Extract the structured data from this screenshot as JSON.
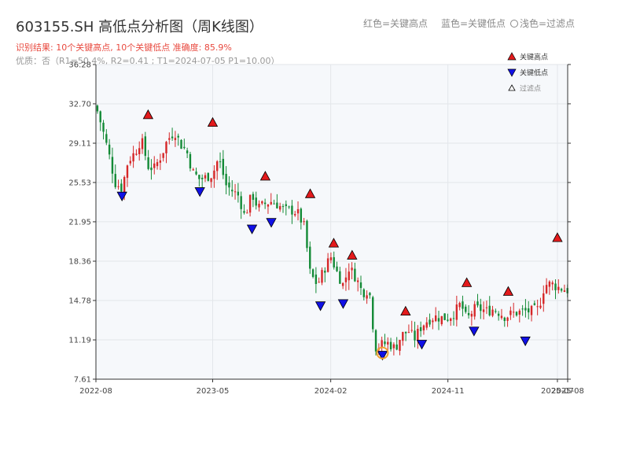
{
  "header": {
    "title": "603155.SH 高低点分析图（周K线图）",
    "legend_red": "红色=关键高点",
    "legend_blue": "蓝色=关键低点",
    "legend_light": "浅色=过滤点",
    "result_text": "识别结果: 10个关键高点, 10个关键低点  准确度: 85.9%",
    "quality_text": "优质：否（R1=50.4%, R2=0.41 ; T1=2024-07-05 P1=10.00）"
  },
  "colors": {
    "up": "#d62728",
    "down": "#138a36",
    "high_marker": "#e31a1c",
    "low_marker": "#1010e6",
    "plot_bg": "#f6f8fb",
    "grid": "#e3e6ea",
    "highlight_ring": "#f0a030"
  },
  "chart_data": {
    "type": "candlestick",
    "title": "603155.SH 高低点分析图（周K线图）",
    "x_range": [
      "2022-08-01",
      "2025-08-08"
    ],
    "x_ticks": [
      {
        "date": "2022-08-01",
        "label": "2022-08"
      },
      {
        "date": "2023-05-01",
        "label": "2023-05"
      },
      {
        "date": "2024-02-01",
        "label": "2024-02"
      },
      {
        "date": "2024-11-01",
        "label": "2024-11"
      },
      {
        "date": "2025-07-15",
        "label": "2025-07"
      },
      {
        "date": "2025-08-08",
        "label": "2025-08"
      }
    ],
    "y_range": [
      7.61,
      36.28
    ],
    "y_ticks": [
      7.61,
      11.19,
      14.78,
      18.36,
      21.95,
      25.53,
      29.11,
      32.7,
      36.28
    ],
    "grid": true,
    "close_series": [
      {
        "date": "2022-08-01",
        "close": 32.5
      },
      {
        "date": "2022-08-15",
        "close": 30.6
      },
      {
        "date": "2022-09-01",
        "close": 28.0
      },
      {
        "date": "2022-09-15",
        "close": 25.5
      },
      {
        "date": "2022-10-01",
        "close": 25.0
      },
      {
        "date": "2022-10-15",
        "close": 27.5
      },
      {
        "date": "2022-11-01",
        "close": 28.3
      },
      {
        "date": "2022-11-15",
        "close": 29.5
      },
      {
        "date": "2022-12-01",
        "close": 27.0
      },
      {
        "date": "2022-12-15",
        "close": 26.8
      },
      {
        "date": "2023-01-01",
        "close": 28.0
      },
      {
        "date": "2023-01-15",
        "close": 29.4
      },
      {
        "date": "2023-02-01",
        "close": 30.2
      },
      {
        "date": "2023-02-15",
        "close": 29.0
      },
      {
        "date": "2023-03-01",
        "close": 28.4
      },
      {
        "date": "2023-03-15",
        "close": 26.5
      },
      {
        "date": "2023-04-01",
        "close": 25.8
      },
      {
        "date": "2023-04-15",
        "close": 26.0
      },
      {
        "date": "2023-05-01",
        "close": 26.3
      },
      {
        "date": "2023-05-15",
        "close": 27.8
      },
      {
        "date": "2023-06-01",
        "close": 25.3
      },
      {
        "date": "2023-06-15",
        "close": 24.8
      },
      {
        "date": "2023-07-01",
        "close": 24.3
      },
      {
        "date": "2023-07-15",
        "close": 22.4
      },
      {
        "date": "2023-08-01",
        "close": 24.5
      },
      {
        "date": "2023-08-15",
        "close": 23.2
      },
      {
        "date": "2023-09-01",
        "close": 23.6
      },
      {
        "date": "2023-09-15",
        "close": 23.8
      },
      {
        "date": "2023-10-01",
        "close": 23.5
      },
      {
        "date": "2023-10-15",
        "close": 23.0
      },
      {
        "date": "2023-11-01",
        "close": 23.0
      },
      {
        "date": "2023-11-15",
        "close": 22.8
      },
      {
        "date": "2023-12-01",
        "close": 21.5
      },
      {
        "date": "2023-12-15",
        "close": 17.2
      },
      {
        "date": "2024-01-01",
        "close": 16.2
      },
      {
        "date": "2024-01-15",
        "close": 17.5
      },
      {
        "date": "2024-02-01",
        "close": 18.8
      },
      {
        "date": "2024-02-15",
        "close": 17.4
      },
      {
        "date": "2024-03-01",
        "close": 16.2
      },
      {
        "date": "2024-03-15",
        "close": 17.8
      },
      {
        "date": "2024-04-01",
        "close": 16.8
      },
      {
        "date": "2024-04-15",
        "close": 15.5
      },
      {
        "date": "2024-05-01",
        "close": 15.8
      },
      {
        "date": "2024-05-15",
        "close": 10.5
      },
      {
        "date": "2024-06-01",
        "close": 10.8
      },
      {
        "date": "2024-06-15",
        "close": 10.9
      },
      {
        "date": "2024-07-01",
        "close": 10.4
      },
      {
        "date": "2024-07-15",
        "close": 11.6
      },
      {
        "date": "2024-08-01",
        "close": 12.0
      },
      {
        "date": "2024-08-15",
        "close": 11.3
      },
      {
        "date": "2024-09-01",
        "close": 12.5
      },
      {
        "date": "2024-09-15",
        "close": 13.0
      },
      {
        "date": "2024-10-01",
        "close": 13.3
      },
      {
        "date": "2024-10-15",
        "close": 13.2
      },
      {
        "date": "2024-11-01",
        "close": 13.2
      },
      {
        "date": "2024-11-15",
        "close": 13.6
      },
      {
        "date": "2024-12-01",
        "close": 14.5
      },
      {
        "date": "2024-12-15",
        "close": 13.0
      },
      {
        "date": "2025-01-01",
        "close": 14.0
      },
      {
        "date": "2025-01-15",
        "close": 14.0
      },
      {
        "date": "2025-02-01",
        "close": 13.8
      },
      {
        "date": "2025-02-15",
        "close": 14.0
      },
      {
        "date": "2025-03-01",
        "close": 13.7
      },
      {
        "date": "2025-03-15",
        "close": 13.3
      },
      {
        "date": "2025-04-01",
        "close": 13.6
      },
      {
        "date": "2025-04-15",
        "close": 13.7
      },
      {
        "date": "2025-05-01",
        "close": 13.8
      },
      {
        "date": "2025-05-15",
        "close": 13.8
      },
      {
        "date": "2025-06-01",
        "close": 14.0
      },
      {
        "date": "2025-06-15",
        "close": 16.2
      },
      {
        "date": "2025-07-01",
        "close": 16.3
      },
      {
        "date": "2025-07-15",
        "close": 16.0
      },
      {
        "date": "2025-08-08",
        "close": 15.7
      }
    ],
    "key_highs": [
      {
        "date": "2022-12-01",
        "value": 31.2
      },
      {
        "date": "2023-05-01",
        "value": 30.5
      },
      {
        "date": "2023-09-01",
        "value": 25.6
      },
      {
        "date": "2023-12-15",
        "value": 24.0
      },
      {
        "date": "2024-02-08",
        "value": 19.5
      },
      {
        "date": "2024-03-22",
        "value": 18.4
      },
      {
        "date": "2024-07-25",
        "value": 13.3
      },
      {
        "date": "2024-12-15",
        "value": 15.9
      },
      {
        "date": "2025-03-22",
        "value": 15.1
      },
      {
        "date": "2025-07-15",
        "value": 20.0
      }
    ],
    "key_lows": [
      {
        "date": "2022-10-01",
        "value": 24.8
      },
      {
        "date": "2023-04-01",
        "value": 25.2
      },
      {
        "date": "2023-08-01",
        "value": 21.8
      },
      {
        "date": "2023-09-15",
        "value": 22.4
      },
      {
        "date": "2024-01-08",
        "value": 14.8
      },
      {
        "date": "2024-03-01",
        "value": 15.0
      },
      {
        "date": "2024-06-01",
        "value": 10.3
      },
      {
        "date": "2024-09-01",
        "value": 11.3
      },
      {
        "date": "2025-01-01",
        "value": 12.5
      },
      {
        "date": "2025-05-01",
        "value": 11.6
      }
    ],
    "highlight": {
      "date": "2024-06-01",
      "value": 10.0
    },
    "legend": {
      "position": "top-right",
      "items": [
        {
          "label": "关键高点",
          "marker": "triangle-up",
          "color": "#e31a1c"
        },
        {
          "label": "关键低点",
          "marker": "triangle-down",
          "color": "#1010e6"
        },
        {
          "label": "过滤点",
          "marker": "triangle-up-outline",
          "color": "#888888"
        }
      ]
    }
  }
}
